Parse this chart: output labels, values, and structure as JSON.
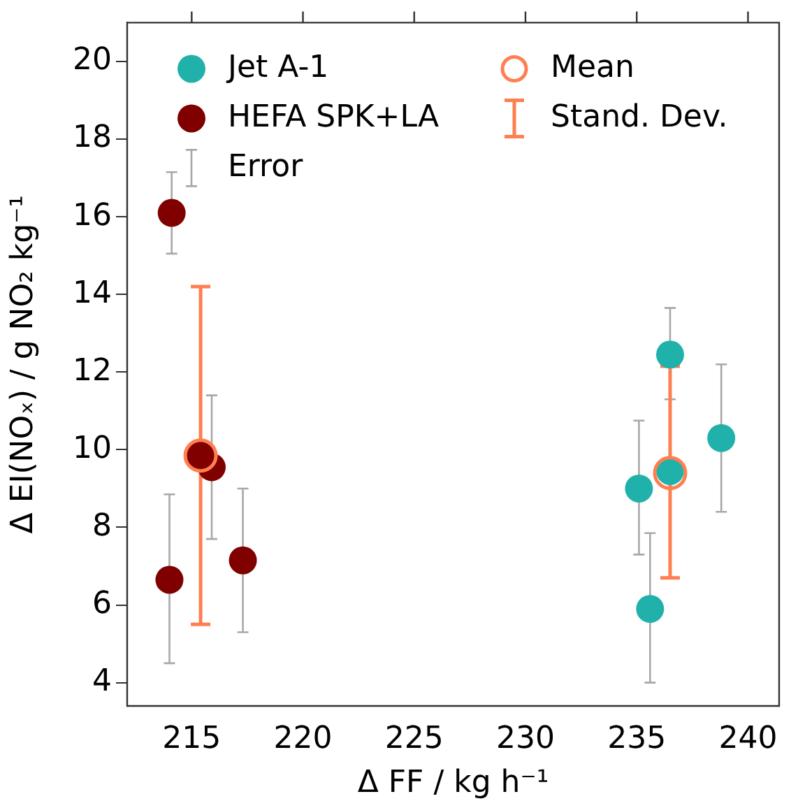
{
  "chart_data": {
    "type": "scatter",
    "xlabel": "Δ FF / kg h⁻¹",
    "ylabel": "Δ EI(NOₓ) / g NO₂ kg⁻¹",
    "xlim": [
      212.1,
      241.4
    ],
    "xticks": [
      215,
      220,
      225,
      230,
      235,
      240
    ],
    "ylim": [
      3.4,
      21.0
    ],
    "yticks": [
      4,
      6,
      8,
      10,
      12,
      14,
      16,
      18,
      20
    ],
    "marker": "circle",
    "grid": false,
    "legend": "top left",
    "annotations": [
      "Error",
      "Stand. Dev."
    ],
    "series": [
      {
        "name": "Jet A-1",
        "color": "#20b2aa",
        "x": [
          235.1,
          235.6,
          236.5,
          236.5,
          238.8
        ],
        "values": [
          9.0,
          5.9,
          12.45,
          9.45,
          10.3
        ],
        "errors": [
          [
            7.3,
            10.75
          ],
          [
            4.0,
            7.85
          ],
          [
            11.3,
            13.65
          ],
          null,
          [
            8.4,
            12.2
          ]
        ]
      },
      {
        "name": "HEFA SPK+LA",
        "color": "#800000",
        "x": [
          214.1,
          214.0,
          215.4,
          215.9,
          217.3
        ],
        "values": [
          16.1,
          6.65,
          9.85,
          9.55,
          7.15
        ],
        "errors": [
          [
            15.05,
            17.15
          ],
          [
            4.5,
            8.85
          ],
          null,
          [
            7.7,
            11.4
          ],
          [
            5.3,
            9.0
          ]
        ]
      },
      {
        "name": "Mean",
        "color": "#ff7f50",
        "x": [
          215.4,
          236.5
        ],
        "values": [
          9.85,
          9.4
        ],
        "errors": [
          [
            5.5,
            14.2
          ],
          [
            6.7,
            12.15
          ]
        ]
      }
    ]
  }
}
